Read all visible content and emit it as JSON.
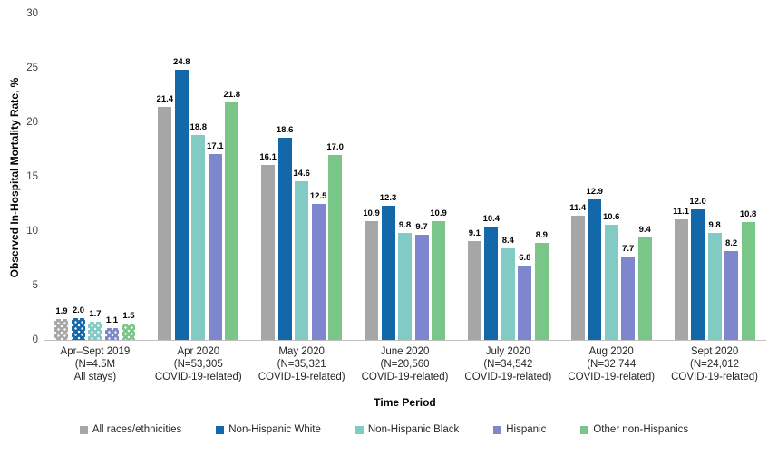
{
  "chart_data": {
    "type": "bar",
    "title": "",
    "xlabel": "Time Period",
    "ylabel": "Observed In-Hospital Mortality Rate, %",
    "ylim": [
      0,
      30
    ],
    "yticks": [
      0,
      5,
      10,
      15,
      20,
      25,
      30
    ],
    "grid": false,
    "legend_position": "bottom",
    "categories": [
      {
        "lines": [
          "Apr–Sept 2019",
          "(N=4.5M",
          "All stays)"
        ],
        "pattern": "dotted"
      },
      {
        "lines": [
          "Apr 2020",
          "(N=53,305",
          "COVID-19-related)"
        ],
        "pattern": "solid"
      },
      {
        "lines": [
          "May 2020",
          "(N=35,321",
          "COVID-19-related)"
        ],
        "pattern": "solid"
      },
      {
        "lines": [
          "June 2020",
          "(N=20,560",
          "COVID-19-related)"
        ],
        "pattern": "solid"
      },
      {
        "lines": [
          "July 2020",
          "(N=34,542",
          "COVID-19-related)"
        ],
        "pattern": "solid"
      },
      {
        "lines": [
          "Aug 2020",
          "(N=32,744",
          "COVID-19-related)"
        ],
        "pattern": "solid"
      },
      {
        "lines": [
          "Sept 2020",
          "(N=24,012",
          "COVID-19-related)"
        ],
        "pattern": "solid"
      }
    ],
    "series": [
      {
        "name": "All races/ethnicities",
        "color": "#a6a6a6",
        "values": [
          1.9,
          21.4,
          16.1,
          10.9,
          9.1,
          11.4,
          11.1
        ]
      },
      {
        "name": "Non-Hispanic White",
        "color": "#1268a9",
        "values": [
          2.0,
          24.8,
          18.6,
          12.3,
          10.4,
          12.9,
          12.0
        ]
      },
      {
        "name": "Non-Hispanic Black",
        "color": "#82cbc4",
        "values": [
          1.7,
          18.8,
          14.6,
          9.8,
          8.4,
          10.6,
          9.8
        ]
      },
      {
        "name": "Hispanic",
        "color": "#7e86cd",
        "values": [
          1.1,
          17.1,
          12.5,
          9.7,
          6.8,
          7.7,
          8.2
        ]
      },
      {
        "name": "Other non-Hispanics",
        "color": "#7ac689",
        "values": [
          1.5,
          21.8,
          17.0,
          10.9,
          8.9,
          9.4,
          10.8
        ]
      }
    ]
  }
}
